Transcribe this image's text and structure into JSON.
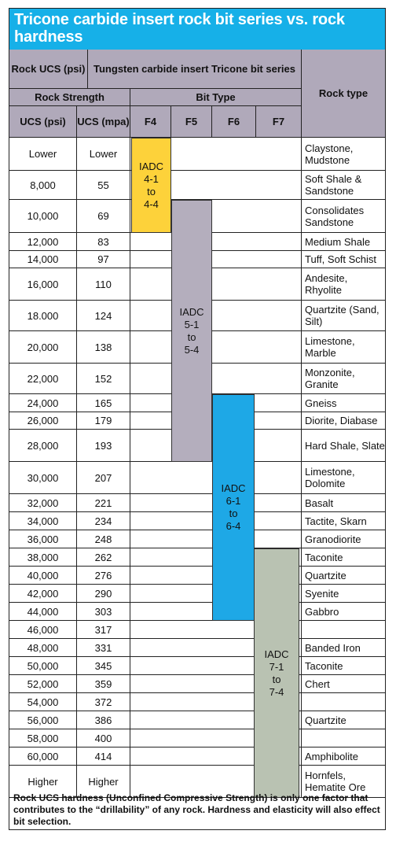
{
  "title": "Tricone carbide insert rock bit series vs. rock hardness",
  "header": {
    "rock_ucs": "Rock UCS (psi)",
    "tci_series": "Tungsten carbide insert Tricone bit series",
    "rock_strength": "Rock Strength",
    "bit_type": "Bit Type",
    "rock_type": "Rock type",
    "ucs_psi": "UCS (psi)",
    "ucs_mpa": "UCS (mpa)",
    "bit_cols": [
      "F4",
      "F5",
      "F6",
      "F7"
    ]
  },
  "rows": [
    {
      "psi": "Lower",
      "mpa": "Lower"
    },
    {
      "psi": "8,000",
      "mpa": "55"
    },
    {
      "psi": "10,000",
      "mpa": "69"
    },
    {
      "psi": "12,000",
      "mpa": "83"
    },
    {
      "psi": "14,000",
      "mpa": "97"
    },
    {
      "psi": "16,000",
      "mpa": "110"
    },
    {
      "psi": "18.000",
      "mpa": "124"
    },
    {
      "psi": "20,000",
      "mpa": "138"
    },
    {
      "psi": "22,000",
      "mpa": "152"
    },
    {
      "psi": "24,000",
      "mpa": "165"
    },
    {
      "psi": "26,000",
      "mpa": "179"
    },
    {
      "psi": "28,000",
      "mpa": "193"
    },
    {
      "psi": "30,000",
      "mpa": "207"
    },
    {
      "psi": "32,000",
      "mpa": "221"
    },
    {
      "psi": "34,000",
      "mpa": "234"
    },
    {
      "psi": "36,000",
      "mpa": "248"
    },
    {
      "psi": "38,000",
      "mpa": "262"
    },
    {
      "psi": "40,000",
      "mpa": "276"
    },
    {
      "psi": "42,000",
      "mpa": "290"
    },
    {
      "psi": "44,000",
      "mpa": "303"
    },
    {
      "psi": "46,000",
      "mpa": "317"
    },
    {
      "psi": "48,000",
      "mpa": "331"
    },
    {
      "psi": "50,000",
      "mpa": "345"
    },
    {
      "psi": "52,000",
      "mpa": "359"
    },
    {
      "psi": "54,000",
      "mpa": "372"
    },
    {
      "psi": "56,000",
      "mpa": "386"
    },
    {
      "psi": "58,000",
      "mpa": "400"
    },
    {
      "psi": "60,000",
      "mpa": "414"
    },
    {
      "psi": "Higher",
      "mpa": "Higher"
    }
  ],
  "rock_types": [
    "Claystone, Mudstone",
    "Soft Shale & Sandstone",
    "Consolidates Sandstone",
    "Medium Shale",
    "Tuff, Soft Schist",
    "Andesite, Rhyolite",
    "Quartzite (Sand, Silt)",
    "Limestone, Marble",
    "Monzonite, Granite",
    "Gneiss",
    "Diorite, Diabase",
    "Hard Shale, Slate",
    "Limestone, Dolomite",
    "Basalt",
    "Tactite, Skarn",
    "Granodiorite",
    "Taconite",
    "Quartzite",
    "Syenite",
    "Gabbro",
    "",
    "Banded Iron",
    "Taconite",
    "Chert",
    "",
    "Quartzite",
    "",
    "Amphibolite",
    "Hornfels, Hematite Ore"
  ],
  "bars": [
    {
      "column": "F4",
      "start_row": 0,
      "end_row": 2,
      "color": "#fdd23a",
      "lines": [
        "IADC",
        "4-1",
        "to",
        "4-4"
      ]
    },
    {
      "column": "F5",
      "start_row": 2,
      "end_row": 11,
      "color": "#b4aebd",
      "lines": [
        "IADC",
        "5-1",
        "to",
        "5-4"
      ]
    },
    {
      "column": "F6",
      "start_row": 9,
      "end_row": 19,
      "color": "#1ea8e6",
      "lines": [
        "IADC",
        "6-1",
        "to",
        "6-4"
      ]
    },
    {
      "column": "F7",
      "start_row": 16,
      "end_row": 28,
      "color": "#b9c2b2",
      "lines": [
        "IADC",
        "7-1",
        "to",
        "7-4"
      ]
    }
  ],
  "footnote": "Rock UCS hardness (Unconfined Compressive Strength) is only one factor that contributes to the “drillability” of any rock. Hardness and elasticity will also effect bit selection."
}
